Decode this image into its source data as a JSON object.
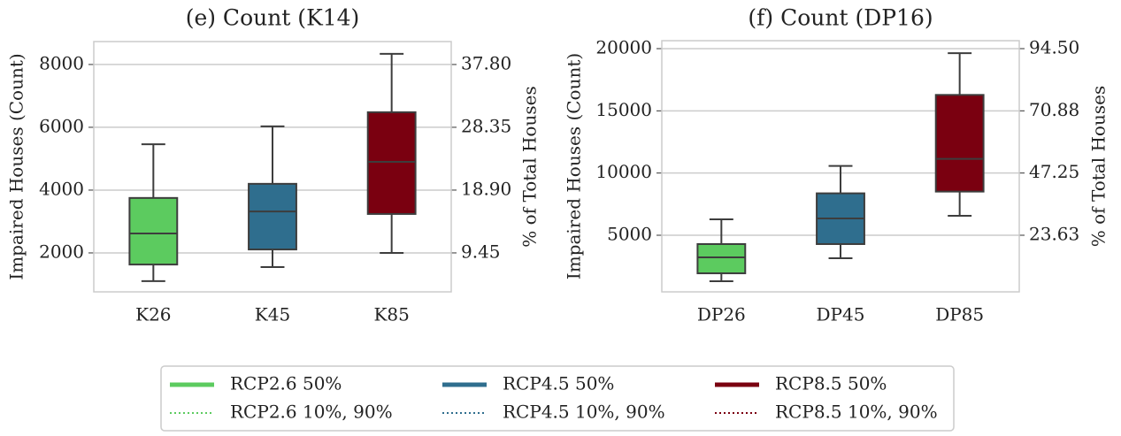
{
  "chart_data": [
    {
      "type": "box",
      "title": "(e) Count (K14)",
      "ylabel": "Impaired Houses (Count)",
      "y2label": "% of Total Houses",
      "categories": [
        "K26",
        "K45",
        "K85"
      ],
      "colors": [
        "#5ccb5f",
        "#2f6e8e",
        "#7a0010"
      ],
      "boxes": [
        {
          "whislo": 1100,
          "q1": 1630,
          "med": 2620,
          "q3": 3750,
          "whishi": 5460
        },
        {
          "whislo": 1550,
          "q1": 2110,
          "med": 3320,
          "q3": 4200,
          "whishi": 6030
        },
        {
          "whislo": 2000,
          "q1": 3240,
          "med": 4900,
          "q3": 6480,
          "whishi": 8340
        }
      ],
      "ylim": [
        760,
        8730
      ],
      "yticks": [
        2000,
        4000,
        6000,
        8000
      ],
      "y2lim": [
        3.59,
        41.25
      ],
      "y2ticks": [
        9.45,
        {
          "value": 18.9,
          "label": "18.90"
        },
        28.35,
        {
          "value": 37.8,
          "label": "37.80"
        }
      ],
      "grid": true
    },
    {
      "type": "box",
      "title": "(f) Count (DP16)",
      "ylabel": "Impaired Houses (Count)",
      "y2label": "% of Total Houses",
      "categories": [
        "DP26",
        "DP45",
        "DP85"
      ],
      "colors": [
        "#5ccb5f",
        "#2f6e8e",
        "#7a0010"
      ],
      "boxes": [
        {
          "whislo": 1300,
          "q1": 1940,
          "med": 3220,
          "q3": 4290,
          "whishi": 6280
        },
        {
          "whislo": 3150,
          "q1": 4290,
          "med": 6350,
          "q3": 8370,
          "whishi": 10570
        },
        {
          "whislo": 6560,
          "q1": 8510,
          "med": 11140,
          "q3": 16280,
          "whishi": 19640
        }
      ],
      "ylim": [
        450,
        20640
      ],
      "yticks": [
        5000,
        10000,
        15000,
        20000
      ],
      "y2lim": [
        2.13,
        97.52
      ],
      "y2ticks": [
        23.63,
        47.25,
        {
          "value": 70.88,
          "label": "70.88"
        },
        {
          "value": 94.5,
          "label": "94.50"
        }
      ],
      "grid": true
    }
  ],
  "legend": {
    "position": "lower center",
    "entries": [
      {
        "name": "RCP2.6 50%",
        "color": "#5ccb5f",
        "style": "solid"
      },
      {
        "name": "RCP4.5 50%",
        "color": "#2f6e8e",
        "style": "solid"
      },
      {
        "name": "RCP8.5 50%",
        "color": "#7a0010",
        "style": "solid"
      },
      {
        "name": "RCP2.6 10%, 90%",
        "color": "#5ccb5f",
        "style": "dotted"
      },
      {
        "name": "RCP4.5 10%, 90%",
        "color": "#2f6e8e",
        "style": "dotted"
      },
      {
        "name": "RCP8.5 10%, 90%",
        "color": "#7a0010",
        "style": "dotted"
      }
    ]
  }
}
